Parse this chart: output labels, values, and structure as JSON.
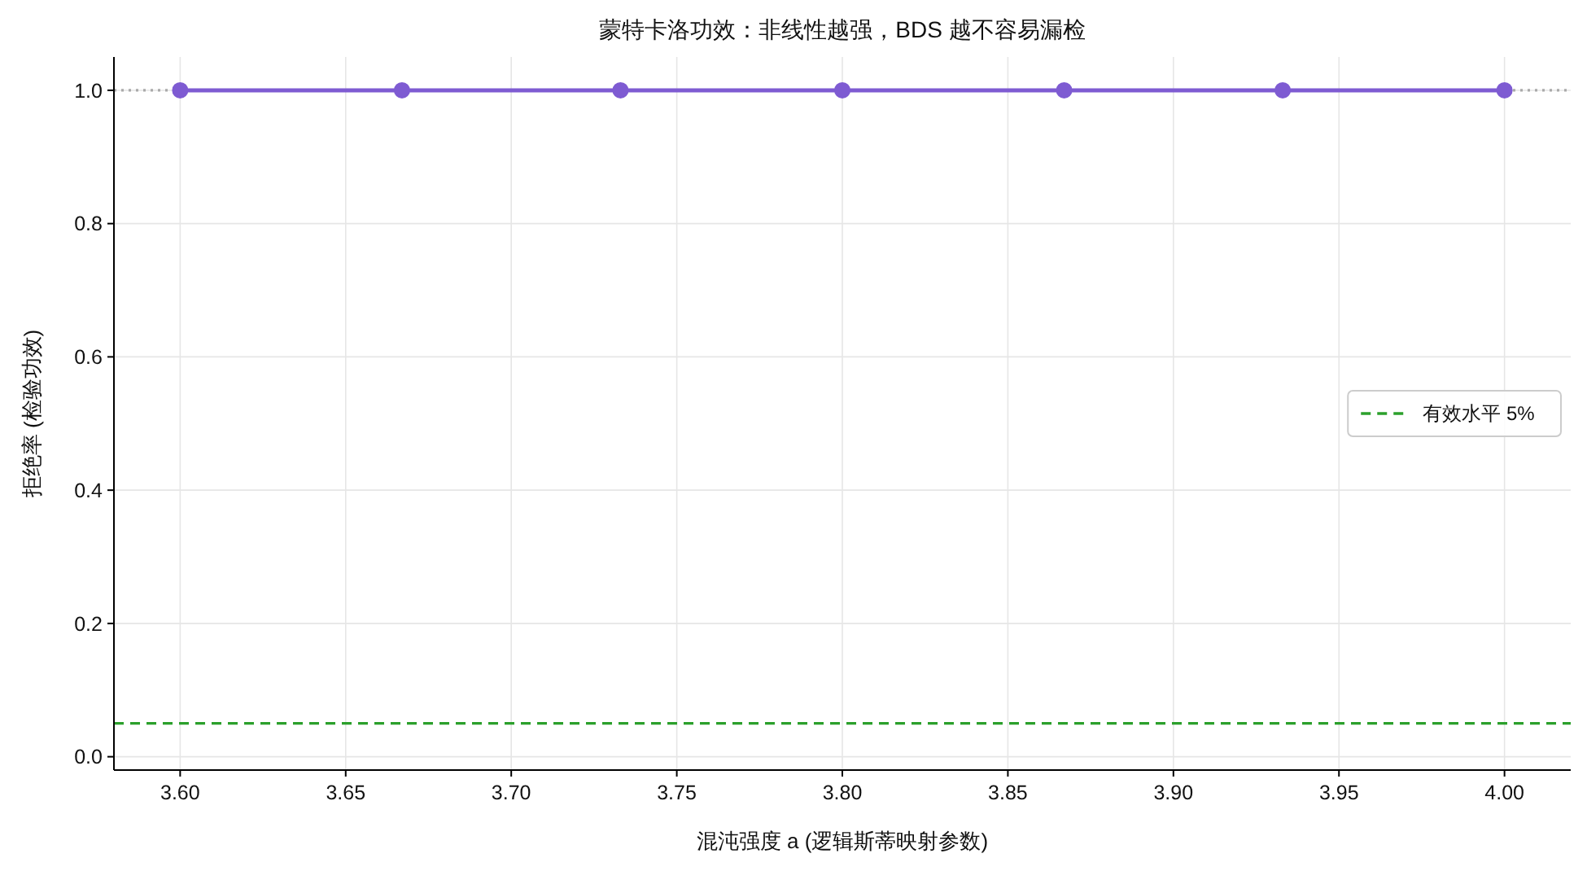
{
  "chart_data": {
    "type": "line",
    "title": "蒙特卡洛功效：非线性越强，BDS 越不容易漏检",
    "xlabel": "混沌强度 a (逻辑斯蒂映射参数)",
    "ylabel": "拒绝率 (检验功效)",
    "x": [
      3.6,
      3.667,
      3.733,
      3.8,
      3.867,
      3.933,
      4.0
    ],
    "series": [
      {
        "color": "#7e5bd2",
        "values": [
          1.0,
          1.0,
          1.0,
          1.0,
          1.0,
          1.0,
          1.0
        ]
      }
    ],
    "marker": "circle",
    "line_style": "solid",
    "xlim": [
      3.58,
      4.02
    ],
    "xticks": [
      {
        "value": 3.6,
        "label": "3.60"
      },
      {
        "value": 3.65,
        "label": "3.65"
      },
      {
        "value": 3.7,
        "label": "3.70"
      },
      {
        "value": 3.75,
        "label": "3.75"
      },
      {
        "value": 3.8,
        "label": "3.80"
      },
      {
        "value": 3.85,
        "label": "3.85"
      },
      {
        "value": 3.9,
        "label": "3.90"
      },
      {
        "value": 3.95,
        "label": "3.95"
      },
      {
        "value": 4.0,
        "label": "4.00"
      }
    ],
    "ylim": [
      -0.02,
      1.05
    ],
    "yticks": [
      {
        "value": 0,
        "label": "0.0"
      },
      {
        "value": 0.2,
        "label": "0.2"
      },
      {
        "value": 0.4,
        "label": "0.4"
      },
      {
        "value": 0.6,
        "label": "0.6"
      },
      {
        "value": 0.8,
        "label": "0.8"
      },
      {
        "value": 1.0,
        "label": "1.0"
      }
    ],
    "ref_lines": [
      {
        "axis": "y",
        "value": 0.05,
        "label": "有效水平 5%",
        "color": "#2ca02c",
        "line_style": "dashed"
      },
      {
        "axis": "y",
        "value": 1.0,
        "color": "#aaaaaa",
        "line_style": "dotted"
      }
    ],
    "grid": true,
    "legend": "right"
  }
}
